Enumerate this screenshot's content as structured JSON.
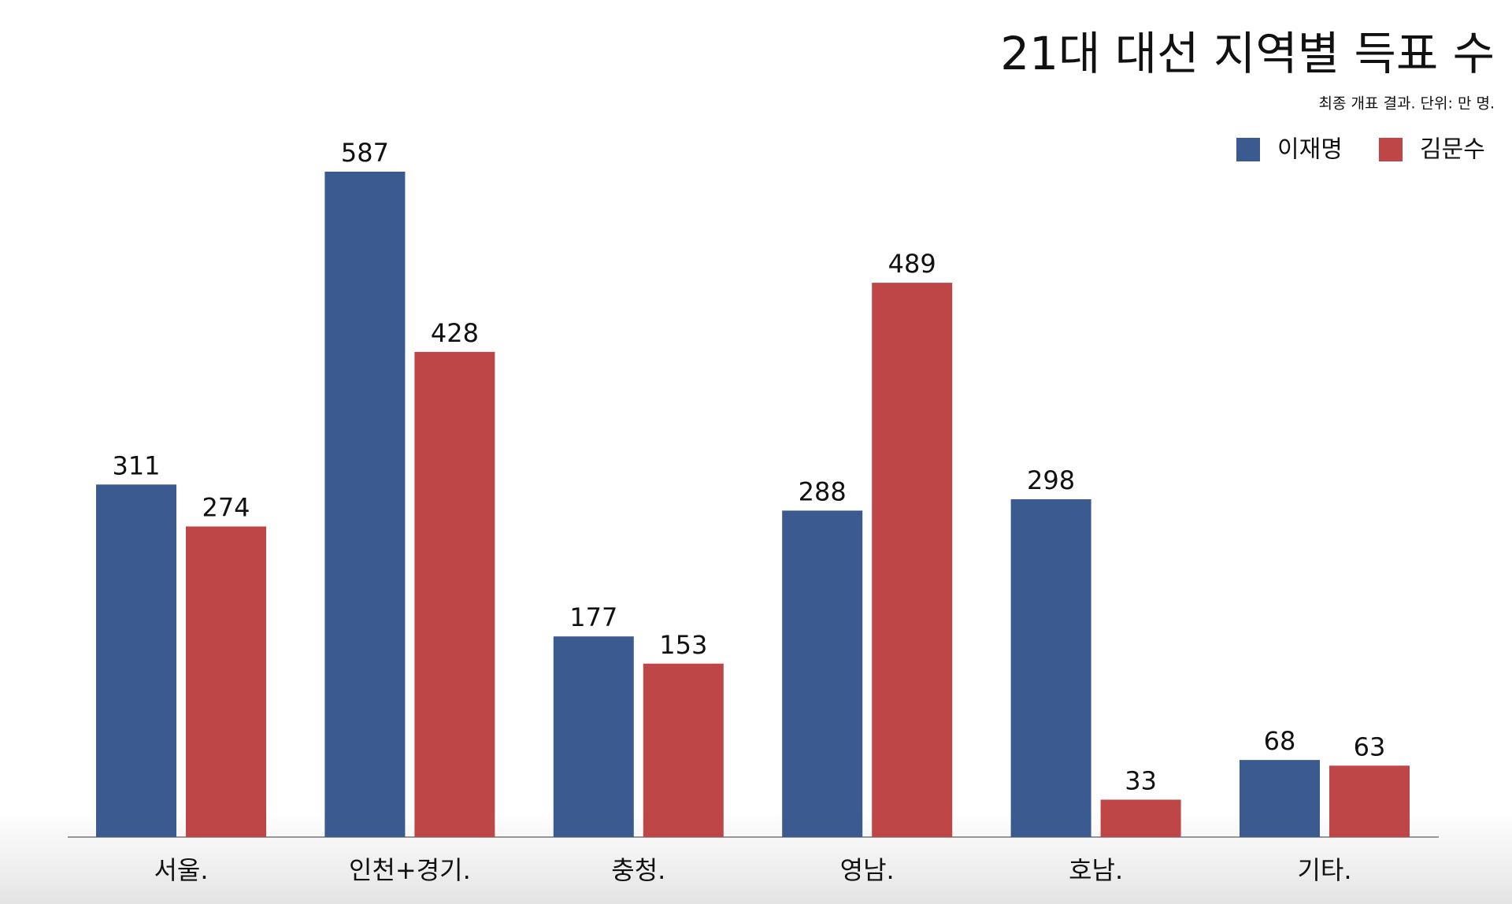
{
  "chart_data": {
    "type": "bar",
    "title": "21대 대선 지역별 득표 수",
    "subtitle": "최종 개표 결과. 단위: 만 명.",
    "categories": [
      "서울.",
      "인천+경기.",
      "충청.",
      "영남.",
      "호남.",
      "기타."
    ],
    "series": [
      {
        "name": "이재명",
        "color": "#3b5a8f",
        "values": [
          311,
          587,
          177,
          288,
          298,
          68
        ]
      },
      {
        "name": "김문수",
        "color": "#bf4646",
        "values": [
          274,
          428,
          153,
          489,
          33,
          63
        ]
      }
    ],
    "legend": "top-right",
    "grid": false
  }
}
